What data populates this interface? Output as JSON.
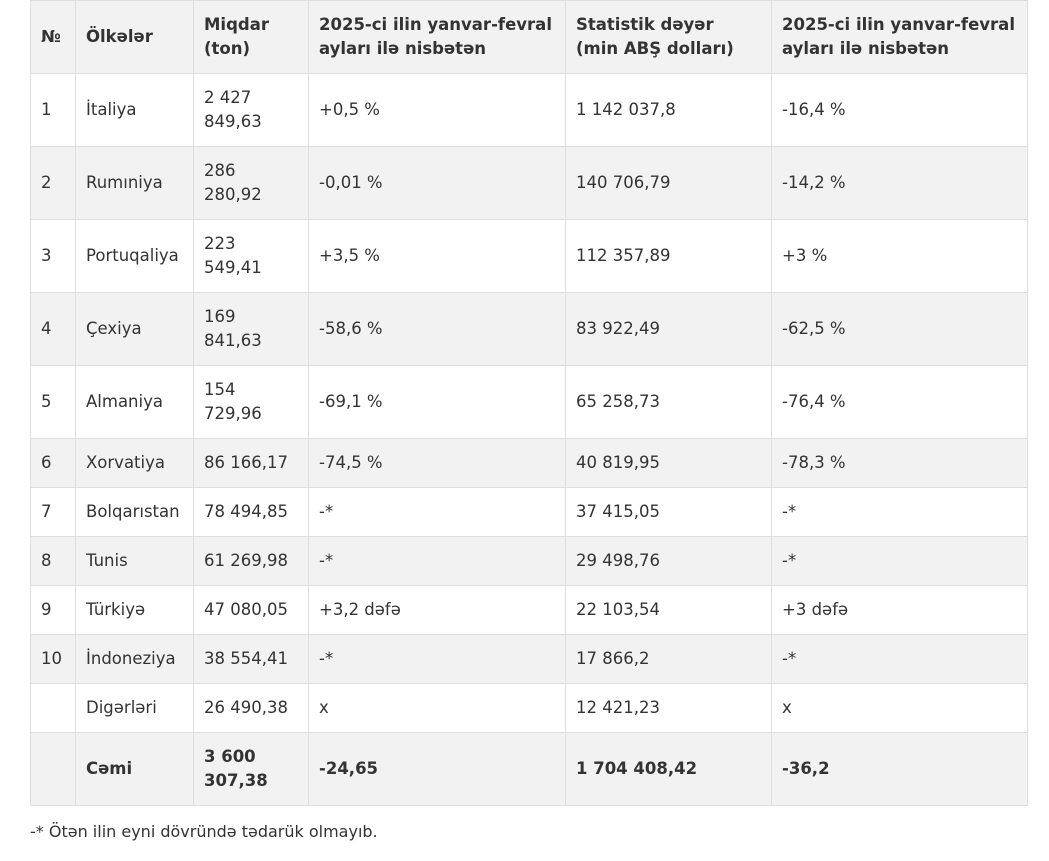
{
  "table": {
    "header": [
      "№",
      "Ölkələr",
      "Miqdar (ton)",
      "2025-ci ilin yanvar-fevral ayları ilə nisbətən",
      "Statistik dəyər (min ABŞ dolları)",
      "2025-ci ilin yanvar-fevral ayları ilə nisbətən"
    ],
    "rows": [
      [
        "1",
        "İtaliya",
        "2 427 849,63",
        "+0,5 %",
        "1 142 037,8",
        "-16,4 %"
      ],
      [
        "2",
        "Rumıniya",
        "286 280,92",
        "-0,01 %",
        "140 706,79",
        "-14,2 %"
      ],
      [
        "3",
        "Portuqaliya",
        "223 549,41",
        "+3,5 %",
        "112 357,89",
        "+3 %"
      ],
      [
        "4",
        "Çexiya",
        "169 841,63",
        "-58,6 %",
        "83 922,49",
        "-62,5 %"
      ],
      [
        "5",
        "Almaniya",
        "154 729,96",
        "-69,1 %",
        "65 258,73",
        "-76,4 %"
      ],
      [
        "6",
        "Xorvatiya",
        "86 166,17",
        "-74,5 %",
        "40 819,95",
        "-78,3 %"
      ],
      [
        "7",
        "Bolqarıstan",
        "78 494,85",
        "-*",
        "37 415,05",
        "-*"
      ],
      [
        "8",
        "Tunis",
        "61 269,98",
        "-*",
        "29 498,76",
        "-*"
      ],
      [
        "9",
        "Türkiyə",
        "47 080,05",
        "+3,2 dəfə",
        "22 103,54",
        "+3 dəfə"
      ],
      [
        "10",
        "İndoneziya",
        "38 554,41",
        "-*",
        "17 866,2",
        "-*"
      ],
      [
        null,
        "Digərləri",
        "26 490,38",
        "x",
        "12 421,23",
        "x"
      ],
      [
        null,
        "Cəmi",
        "3 600 307,38",
        "-24,65",
        "1 704 408,42",
        "-36,2"
      ]
    ]
  },
  "footnote": "-* Ötən ilin eyni dövründə tədarük olmayıb."
}
